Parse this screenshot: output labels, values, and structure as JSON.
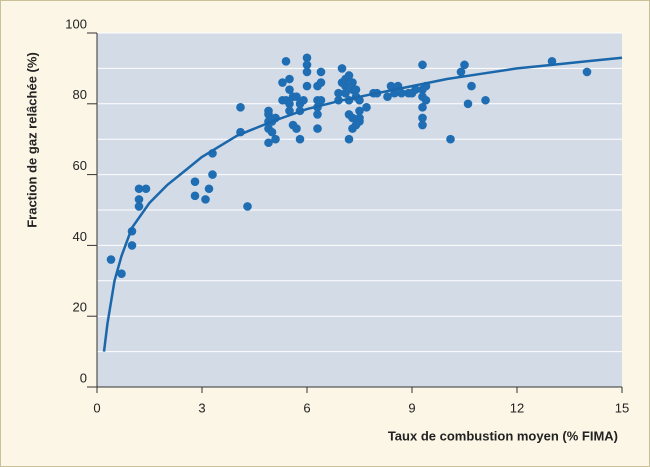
{
  "chart_data": {
    "type": "scatter",
    "x_label": "Taux de combustion moyen (% FIMA)",
    "y_label": "Fraction de gaz relâchée (%)",
    "xlim": [
      0,
      15
    ],
    "ylim": [
      0,
      100
    ],
    "xticks": [
      0,
      3,
      6,
      9,
      12,
      15
    ],
    "yticks": [
      0,
      20,
      40,
      60,
      80,
      100
    ],
    "yminor": [
      10,
      30,
      50,
      70,
      90
    ],
    "grid": true,
    "color": "#1f6db3",
    "x": [
      0.4,
      0.7,
      1.0,
      1.0,
      1.2,
      1.2,
      1.2,
      1.4,
      2.8,
      2.8,
      3.2,
      3.1,
      3.3,
      3.3,
      4.3,
      4.1,
      4.1,
      4.9,
      4.9,
      4.9,
      4.9,
      4.9,
      5.0,
      5.0,
      5.1,
      5.1,
      5.3,
      5.3,
      5.4,
      5.4,
      5.5,
      5.5,
      5.5,
      5.5,
      5.6,
      5.6,
      5.7,
      5.7,
      5.8,
      5.8,
      5.8,
      5.9,
      6.0,
      6.0,
      6.0,
      6.0,
      6.3,
      6.3,
      6.4,
      6.4,
      6.3,
      6.3,
      6.3,
      6.4,
      6.9,
      6.9,
      7.0,
      7.0,
      7.1,
      7.1,
      7.1,
      7.2,
      7.2,
      7.2,
      7.2,
      7.3,
      7.3,
      7.3,
      7.3,
      7.4,
      7.4,
      7.4,
      7.5,
      7.5,
      7.5,
      7.5,
      7.7,
      7.9,
      8.0,
      8.3,
      8.4,
      8.5,
      8.6,
      8.7,
      8.9,
      9.0,
      9.1,
      9.3,
      9.3,
      9.3,
      9.3,
      9.3,
      9.3,
      9.4,
      9.4,
      10.1,
      10.4,
      10.5,
      10.6,
      10.7,
      11.1,
      13.0,
      14.0
    ],
    "y": [
      36,
      32,
      44,
      40,
      56,
      53,
      51,
      56,
      58,
      54,
      56,
      53,
      66,
      60,
      51,
      79,
      72,
      78,
      75,
      73,
      69,
      77,
      75,
      72,
      70,
      76,
      81,
      86,
      81,
      92,
      78,
      87,
      84,
      80,
      82,
      74,
      82,
      73,
      70,
      78,
      80,
      81,
      93,
      91,
      89,
      85,
      85,
      79,
      89,
      86,
      81,
      77,
      73,
      81,
      81,
      83,
      86,
      90,
      85,
      87,
      83,
      81,
      70,
      88,
      77,
      84,
      86,
      73,
      76,
      82,
      74,
      84,
      81,
      78,
      75,
      76,
      79,
      83,
      83,
      82,
      85,
      83,
      85,
      83,
      83,
      83,
      84,
      84,
      91,
      82,
      76,
      74,
      79,
      81,
      85,
      70,
      89,
      91,
      80,
      85,
      81,
      92,
      89
    ],
    "curve": {
      "color": "#1a67ab",
      "x": [
        0.2,
        0.3,
        0.5,
        0.7,
        1,
        1.5,
        2,
        2.5,
        3,
        4,
        5,
        6,
        7,
        8,
        9,
        10,
        11,
        12,
        13,
        14,
        15
      ],
      "y": [
        10,
        18,
        30,
        37,
        45,
        52,
        57,
        61,
        65,
        71,
        75,
        78.5,
        81,
        83,
        85,
        87,
        88.5,
        90,
        91,
        92,
        93
      ]
    }
  }
}
